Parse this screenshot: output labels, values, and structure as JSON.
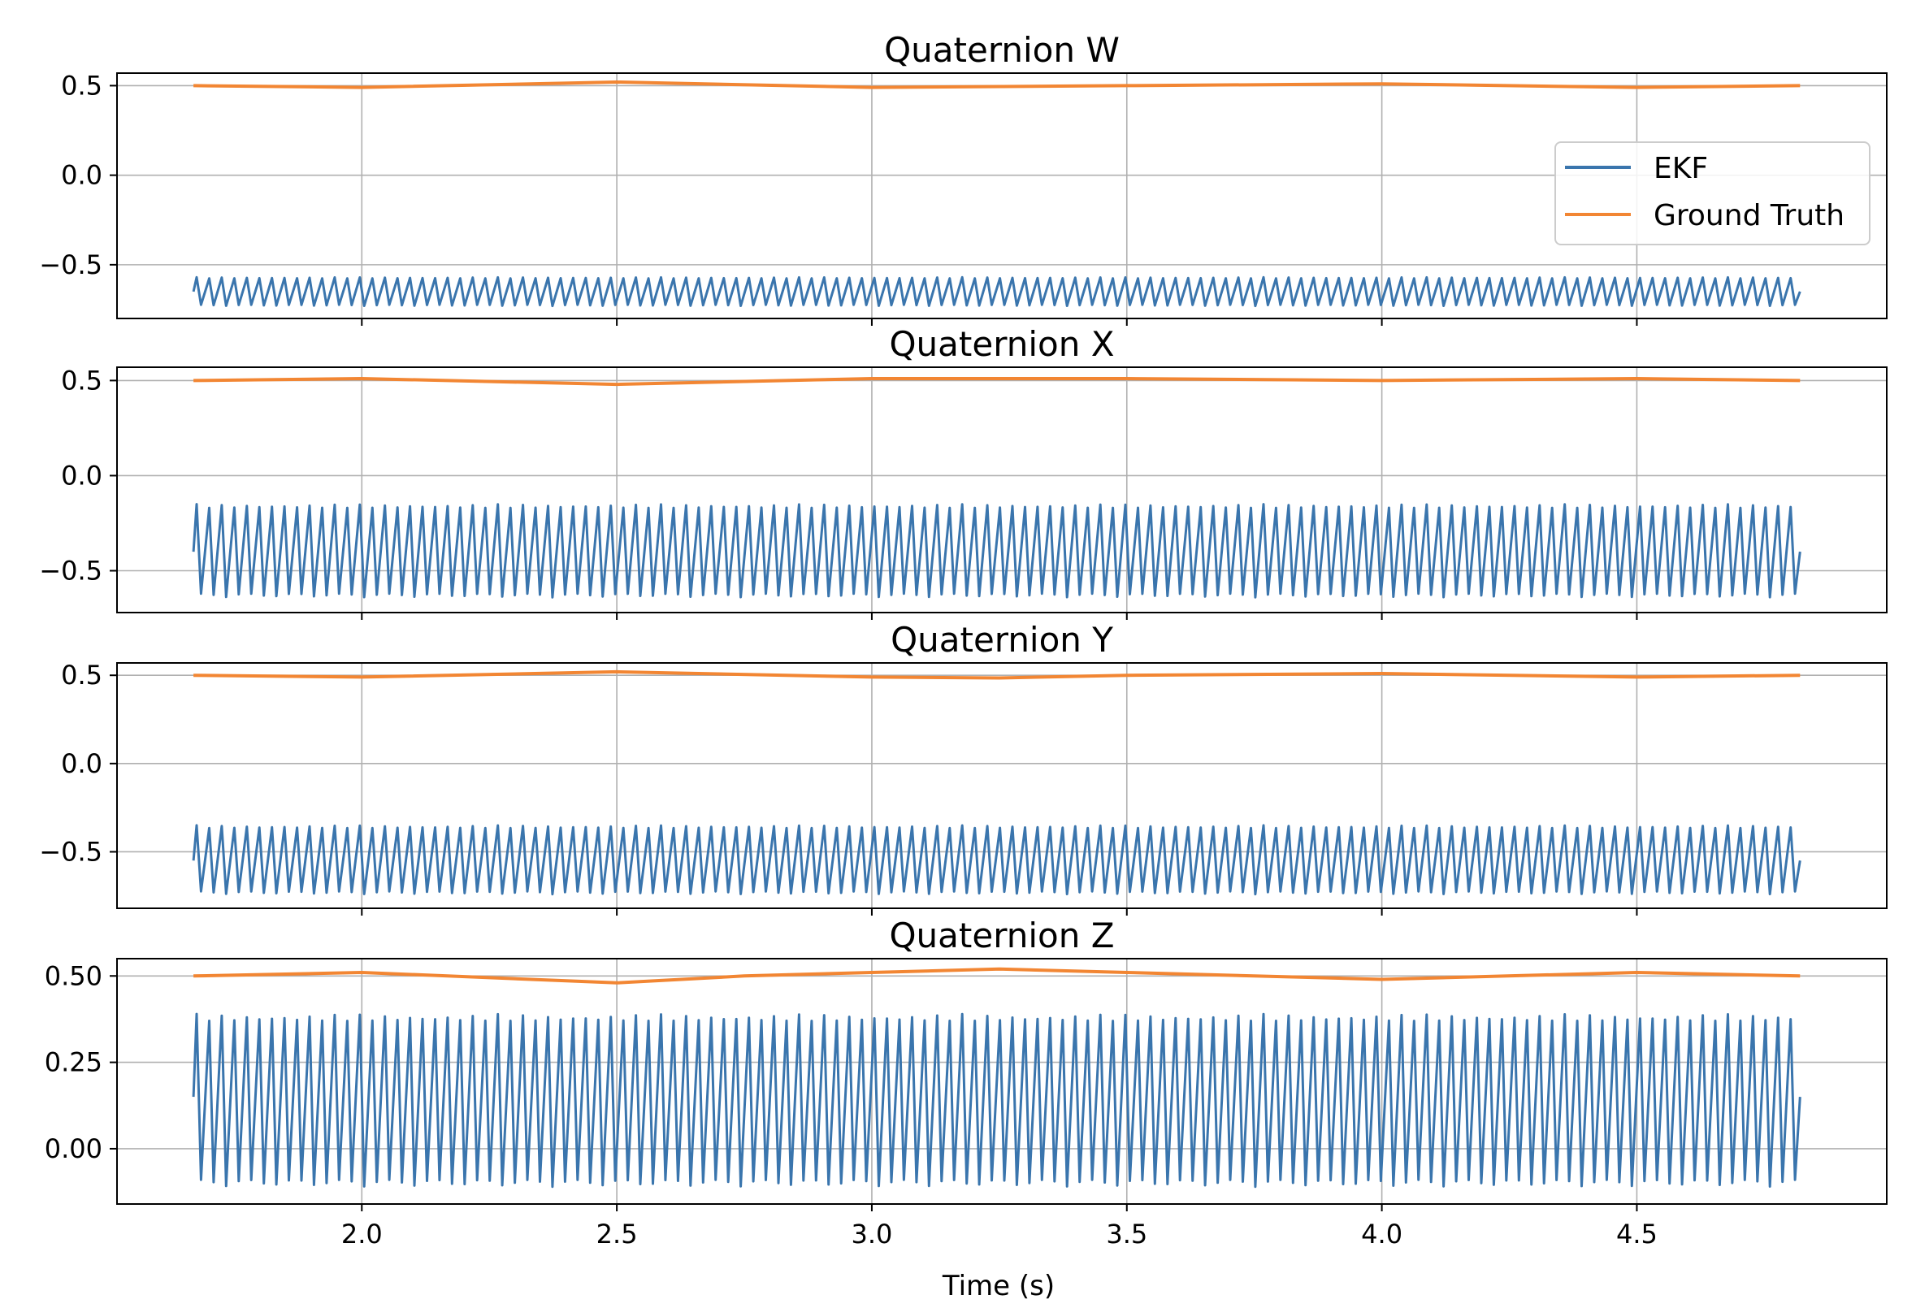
{
  "figure": {
    "xlabel": "Time (s)"
  },
  "colors": {
    "ekf": "#3a75ad",
    "ground_truth": "#f28633",
    "grid": "#b0b0b0",
    "axes": "#000000"
  },
  "legend": {
    "placement": "center-right of first panel",
    "entries": [
      "EKF",
      "Ground Truth"
    ]
  },
  "chart_data": [
    {
      "type": "line",
      "title": "Quaternion W",
      "xlim": [
        1.52,
        4.99
      ],
      "ylim": [
        -0.8,
        0.57
      ],
      "xticks": [
        2.0,
        2.5,
        3.0,
        3.5,
        4.0,
        4.5
      ],
      "xtick_labels": [
        "2.0",
        "2.5",
        "3.0",
        "3.5",
        "4.0",
        "4.5"
      ],
      "show_xtick_labels": false,
      "yticks": [
        -0.5,
        0.0,
        0.5
      ],
      "ytick_labels": [
        "−0.5",
        "0.0",
        "0.5"
      ],
      "grid": true,
      "series": [
        {
          "name": "EKF",
          "style": "oscillation",
          "x_start": 1.67,
          "x_end": 4.82,
          "cycles": 128,
          "low": -0.73,
          "high": -0.57,
          "mid": -0.65
        },
        {
          "name": "Ground Truth",
          "style": "curve",
          "x": [
            1.67,
            2.0,
            2.5,
            3.0,
            3.5,
            4.0,
            4.5,
            4.82
          ],
          "y": [
            0.5,
            0.49,
            0.52,
            0.49,
            0.5,
            0.51,
            0.49,
            0.5
          ]
        }
      ]
    },
    {
      "type": "line",
      "title": "Quaternion X",
      "xlim": [
        1.52,
        4.99
      ],
      "ylim": [
        -0.72,
        0.57
      ],
      "xticks": [
        2.0,
        2.5,
        3.0,
        3.5,
        4.0,
        4.5
      ],
      "xtick_labels": [
        "2.0",
        "2.5",
        "3.0",
        "3.5",
        "4.0",
        "4.5"
      ],
      "show_xtick_labels": false,
      "yticks": [
        -0.5,
        0.0,
        0.5
      ],
      "ytick_labels": [
        "−0.5",
        "0.0",
        "0.5"
      ],
      "grid": true,
      "series": [
        {
          "name": "EKF",
          "style": "oscillation",
          "x_start": 1.67,
          "x_end": 4.82,
          "cycles": 128,
          "low": -0.64,
          "high": -0.15,
          "mid": -0.4
        },
        {
          "name": "Ground Truth",
          "style": "curve",
          "x": [
            1.67,
            2.0,
            2.5,
            3.0,
            3.5,
            4.0,
            4.5,
            4.82
          ],
          "y": [
            0.5,
            0.51,
            0.48,
            0.51,
            0.51,
            0.5,
            0.51,
            0.5
          ]
        }
      ]
    },
    {
      "type": "line",
      "title": "Quaternion Y",
      "xlim": [
        1.52,
        4.99
      ],
      "ylim": [
        -0.82,
        0.57
      ],
      "xticks": [
        2.0,
        2.5,
        3.0,
        3.5,
        4.0,
        4.5
      ],
      "xtick_labels": [
        "2.0",
        "2.5",
        "3.0",
        "3.5",
        "4.0",
        "4.5"
      ],
      "show_xtick_labels": false,
      "yticks": [
        -0.5,
        0.0,
        0.5
      ],
      "ytick_labels": [
        "−0.5",
        "0.0",
        "0.5"
      ],
      "grid": true,
      "series": [
        {
          "name": "EKF",
          "style": "oscillation",
          "x_start": 1.67,
          "x_end": 4.82,
          "cycles": 128,
          "low": -0.74,
          "high": -0.35,
          "mid": -0.55
        },
        {
          "name": "Ground Truth",
          "style": "curve",
          "x": [
            1.67,
            2.0,
            2.5,
            3.0,
            3.25,
            3.5,
            4.0,
            4.5,
            4.82
          ],
          "y": [
            0.5,
            0.49,
            0.52,
            0.49,
            0.485,
            0.5,
            0.51,
            0.49,
            0.5
          ]
        }
      ]
    },
    {
      "type": "line",
      "title": "Quaternion Z",
      "xlim": [
        1.52,
        4.99
      ],
      "ylim": [
        -0.16,
        0.55
      ],
      "xticks": [
        2.0,
        2.5,
        3.0,
        3.5,
        4.0,
        4.5
      ],
      "xtick_labels": [
        "2.0",
        "2.5",
        "3.0",
        "3.5",
        "4.0",
        "4.5"
      ],
      "show_xtick_labels": true,
      "yticks": [
        0.0,
        0.25,
        0.5
      ],
      "ytick_labels": [
        "0.00",
        "0.25",
        "0.50"
      ],
      "grid": true,
      "series": [
        {
          "name": "EKF",
          "style": "oscillation",
          "x_start": 1.67,
          "x_end": 4.82,
          "cycles": 128,
          "low": -0.11,
          "high": 0.39,
          "mid": 0.15
        },
        {
          "name": "Ground Truth",
          "style": "curve",
          "x": [
            1.67,
            2.0,
            2.5,
            2.75,
            3.0,
            3.25,
            3.5,
            4.0,
            4.5,
            4.82
          ],
          "y": [
            0.5,
            0.51,
            0.48,
            0.5,
            0.51,
            0.52,
            0.51,
            0.49,
            0.51,
            0.5
          ]
        }
      ]
    }
  ]
}
